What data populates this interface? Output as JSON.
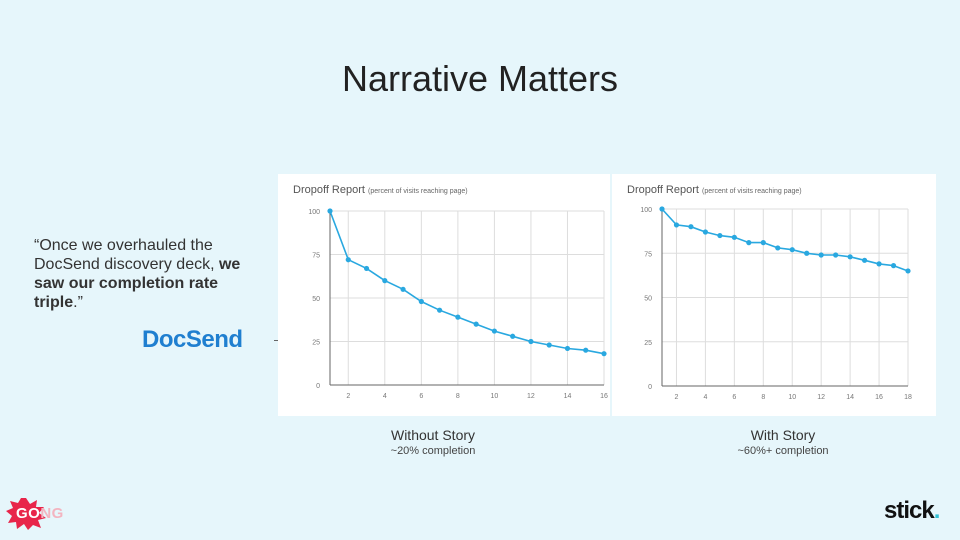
{
  "title": "Narrative Matters",
  "quote": {
    "open": "“Once we overhauled the DocSend discovery deck, ",
    "bold": "we saw our completion rate triple",
    "close": ".”"
  },
  "docsend_logo": "DocSend",
  "logos": {
    "gong": "GONG",
    "gong_first": "GO",
    "gong_rest": "NG",
    "stick": "stick",
    "stick_dot": "."
  },
  "colors": {
    "line": "#29a8e0",
    "grid": "#dddddd",
    "docsend": "#1f7fd0",
    "gong": "#e8254a",
    "stick_dot": "#33c1d4"
  },
  "chart_data": [
    {
      "type": "line",
      "title": "Dropoff Report",
      "subtitle": "(percent of visits reaching page)",
      "x": [
        1,
        2,
        3,
        4,
        5,
        6,
        7,
        8,
        9,
        10,
        11,
        12,
        13,
        14,
        15,
        16
      ],
      "series": [
        {
          "values": [
            100,
            72,
            67,
            60,
            55,
            48,
            43,
            39,
            35,
            31,
            28,
            25,
            23,
            21,
            20,
            18
          ]
        }
      ],
      "xticks": [
        2,
        4,
        6,
        8,
        10,
        12,
        14,
        16
      ],
      "yticks": [
        0,
        25,
        50,
        75,
        100
      ],
      "xlim": [
        1,
        16
      ],
      "ylim": [
        0,
        100
      ],
      "grid": true,
      "caption": "Without Story",
      "caption_sub": "~20% completion"
    },
    {
      "type": "line",
      "title": "Dropoff Report",
      "subtitle": "(percent of visits reaching page)",
      "x": [
        1,
        2,
        3,
        4,
        5,
        6,
        7,
        8,
        9,
        10,
        11,
        12,
        13,
        14,
        15,
        16,
        17,
        18
      ],
      "series": [
        {
          "values": [
            100,
            91,
            90,
            87,
            85,
            84,
            81,
            81,
            78,
            77,
            75,
            74,
            74,
            73,
            71,
            69,
            68,
            65
          ]
        }
      ],
      "xticks": [
        2,
        4,
        6,
        8,
        10,
        12,
        14,
        16,
        18
      ],
      "yticks": [
        0,
        25,
        50,
        75,
        100
      ],
      "xlim": [
        1,
        18
      ],
      "ylim": [
        0,
        100
      ],
      "grid": true,
      "caption": "With Story",
      "caption_sub": "~60%+ completion"
    }
  ]
}
